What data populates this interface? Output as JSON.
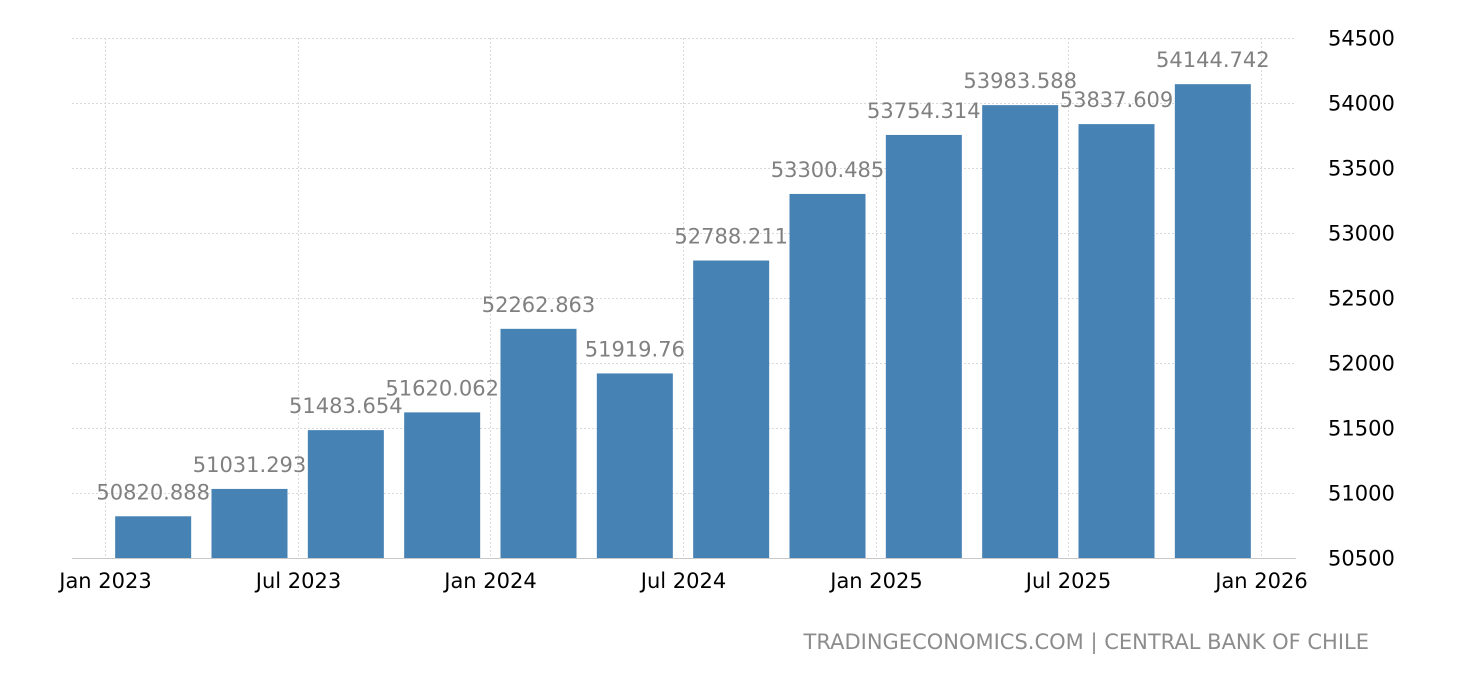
{
  "source": {
    "text": "TRADINGECONOMICS.COM | CENTRAL BANK OF CHILE"
  },
  "colors": {
    "bar": "#4682b4",
    "data_label": "#808080",
    "grid": "#d9d9d9",
    "source_text": "#8c8c8c"
  },
  "chart_data": {
    "type": "bar",
    "title": "",
    "xlabel": "",
    "ylabel": "",
    "categories": [
      "2023-01",
      "2023-04",
      "2023-07",
      "2023-10",
      "2024-01",
      "2024-04",
      "2024-07",
      "2024-10",
      "2025-01",
      "2025-04",
      "2025-07",
      "2025-10"
    ],
    "values": [
      50820.888,
      51031.293,
      51483.654,
      51620.062,
      52262.863,
      51919.76,
      52788.211,
      53300.485,
      53754.314,
      53983.588,
      53837.609,
      54144.742
    ],
    "data_labels": [
      "50820.888",
      "51031.293",
      "51483.654",
      "51620.062",
      "52262.863",
      "51919.76",
      "52788.211",
      "53300.485",
      "53754.314",
      "53983.588",
      "53837.609",
      "54144.742"
    ],
    "ylim": [
      50500,
      54500
    ],
    "y_ticks": [
      50500,
      51000,
      51500,
      52000,
      52500,
      53000,
      53500,
      54000,
      54500
    ],
    "y_tick_labels": [
      "50500",
      "51000",
      "51500",
      "52000",
      "52500",
      "53000",
      "53500",
      "54000",
      "54500"
    ],
    "x_ticks": [
      "2023-01",
      "2023-07",
      "2024-01",
      "2024-07",
      "2025-01",
      "2025-07",
      "2026-01"
    ],
    "x_tick_labels": [
      "Jan 2023",
      "Jul 2023",
      "Jan 2024",
      "Jul 2024",
      "Jan 2025",
      "Jul 2025",
      "Jan 2026"
    ],
    "grid": true,
    "y_axis_side": "right",
    "legend": "none"
  }
}
